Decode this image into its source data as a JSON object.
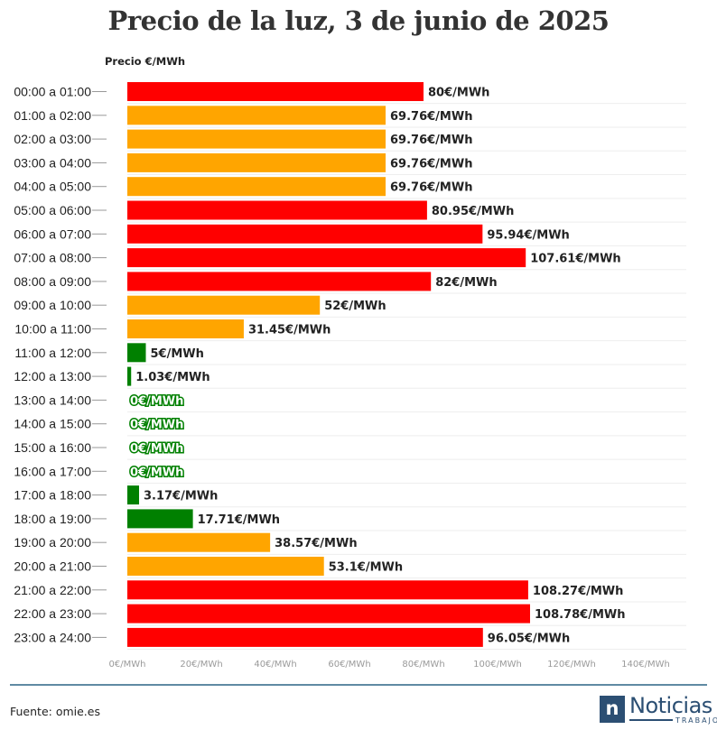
{
  "title": "Precio de la luz, 3 de junio de 2025",
  "source": "Fuente: omie.es",
  "logo": {
    "word": "Noticias",
    "sub": "TRABAJO",
    "mark": "n"
  },
  "colors": {
    "high": "#ff0000",
    "mid": "#ffa500",
    "low": "#008000"
  },
  "chart_data": {
    "type": "bar",
    "orientation": "horizontal",
    "title": "Precio de la luz, 3 de junio de 2025",
    "ylabel": "Precio €/MWh",
    "xlim": [
      0,
      140
    ],
    "value_suffix": "€/MWh",
    "tick_values": [
      0,
      20,
      40,
      60,
      80,
      100,
      120,
      140
    ],
    "tick_labels": [
      "0€/MWh",
      "20€/MWh",
      "40€/MWh",
      "60€/MWh",
      "80€/MWh",
      "100€/MWh",
      "120€/MWh",
      "140€/MWh"
    ],
    "categories": [
      "00:00 a 01:00",
      "01:00 a 02:00",
      "02:00 a 03:00",
      "03:00 a 04:00",
      "04:00 a 05:00",
      "05:00 a 06:00",
      "06:00 a 07:00",
      "07:00 a 08:00",
      "08:00 a 09:00",
      "09:00 a 10:00",
      "10:00 a 11:00",
      "11:00 a 12:00",
      "12:00 a 13:00",
      "13:00 a 14:00",
      "14:00 a 15:00",
      "15:00 a 16:00",
      "16:00 a 17:00",
      "17:00 a 18:00",
      "18:00 a 19:00",
      "19:00 a 20:00",
      "20:00 a 21:00",
      "21:00 a 22:00",
      "22:00 a 23:00",
      "23:00 a 24:00"
    ],
    "values": [
      80,
      69.76,
      69.76,
      69.76,
      69.76,
      80.95,
      95.94,
      107.61,
      82,
      52,
      31.45,
      5,
      1.03,
      0,
      0,
      0,
      0,
      3.17,
      17.71,
      38.57,
      53.1,
      108.27,
      108.78,
      96.05
    ],
    "value_labels": [
      "80€/MWh",
      "69.76€/MWh",
      "69.76€/MWh",
      "69.76€/MWh",
      "69.76€/MWh",
      "80.95€/MWh",
      "95.94€/MWh",
      "107.61€/MWh",
      "82€/MWh",
      "52€/MWh",
      "31.45€/MWh",
      "5€/MWh",
      "1.03€/MWh",
      "0€/MWh",
      "0€/MWh",
      "0€/MWh",
      "0€/MWh",
      "3.17€/MWh",
      "17.71€/MWh",
      "38.57€/MWh",
      "53.1€/MWh",
      "108.27€/MWh",
      "108.78€/MWh",
      "96.05€/MWh"
    ],
    "bar_colors": [
      "red",
      "orange",
      "orange",
      "orange",
      "orange",
      "red",
      "red",
      "red",
      "red",
      "orange",
      "orange",
      "green",
      "green",
      "green",
      "green",
      "green",
      "green",
      "green",
      "green",
      "orange",
      "orange",
      "red",
      "red",
      "red"
    ]
  }
}
